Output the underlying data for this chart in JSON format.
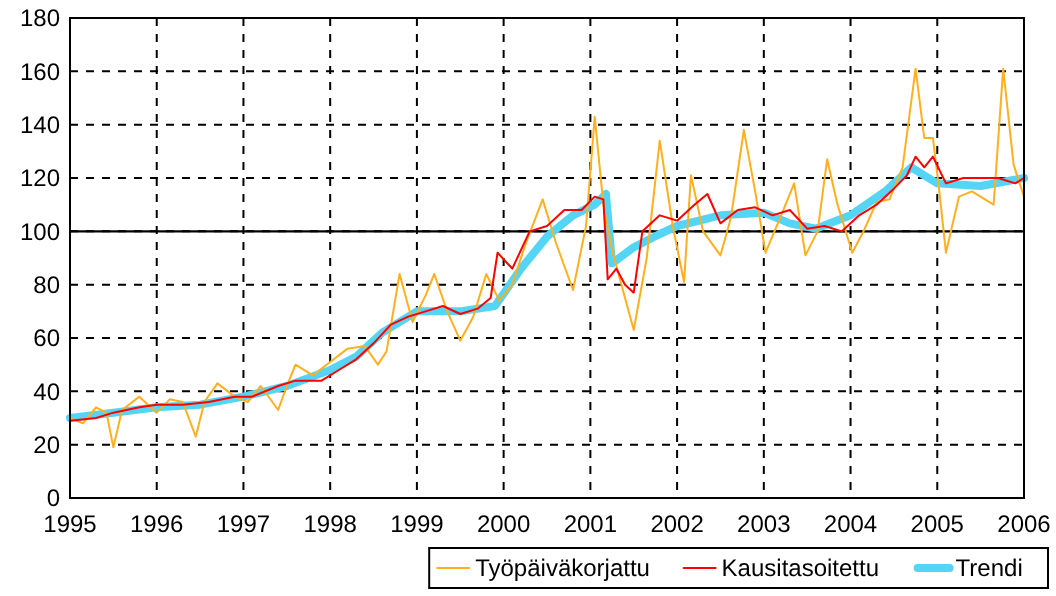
{
  "chart_data": {
    "type": "line",
    "xlim": [
      1995,
      2006
    ],
    "ylim": [
      0,
      180
    ],
    "xticks": [
      1995,
      1996,
      1997,
      1998,
      1999,
      2000,
      2001,
      2002,
      2003,
      2004,
      2005,
      2006
    ],
    "yticks": [
      0,
      20,
      40,
      60,
      80,
      100,
      120,
      140,
      160,
      180
    ],
    "grid": true,
    "legend": "bottom",
    "line_style": "solid",
    "ref_lines": [
      {
        "axis": "y",
        "value": 100,
        "label": null,
        "color": "#000000"
      }
    ],
    "series": [
      {
        "name": "Työpäiväkorjattu",
        "color": "#ffb020",
        "x": [
          1995,
          1995.15,
          1995.3,
          1995.42,
          1995.5,
          1995.6,
          1995.8,
          1996,
          1996.15,
          1996.3,
          1996.45,
          1996.55,
          1996.7,
          1996.9,
          1997.05,
          1997.2,
          1997.4,
          1997.5,
          1997.6,
          1997.8,
          1998,
          1998.2,
          1998.4,
          1998.55,
          1998.65,
          1998.8,
          1998.95,
          1999.1,
          1999.2,
          1999.35,
          1999.5,
          1999.65,
          1999.8,
          1999.95,
          2000.1,
          2000.25,
          2000.45,
          2000.6,
          2000.8,
          2000.95,
          2001.05,
          2001.15,
          2001.25,
          2001.4,
          2001.5,
          2001.65,
          2001.8,
          2001.95,
          2002.08,
          2002.16,
          2002.3,
          2002.5,
          2002.62,
          2002.77,
          2002.9,
          2003.02,
          2003.2,
          2003.35,
          2003.48,
          2003.62,
          2003.73,
          2003.85,
          2004.02,
          2004.15,
          2004.3,
          2004.45,
          2004.6,
          2004.75,
          2004.85,
          2004.95,
          2005.02,
          2005.1,
          2005.25,
          2005.4,
          2005.55,
          2005.65,
          2005.76,
          2005.88,
          2006
        ],
        "values": [
          30,
          28,
          34,
          32,
          19,
          33,
          38,
          32,
          37,
          36,
          23,
          36,
          43,
          38,
          36,
          42,
          33,
          42,
          50,
          46,
          51,
          56,
          57,
          50,
          55,
          84,
          66,
          76,
          84,
          70,
          59,
          68,
          84,
          74,
          80,
          95,
          112,
          96,
          78,
          102,
          143,
          110,
          93,
          75,
          63,
          90,
          134,
          102,
          81,
          121,
          100,
          91,
          105,
          138,
          115,
          92,
          106,
          118,
          91,
          100,
          127,
          110,
          92,
          100,
          111,
          112,
          124,
          161,
          135,
          135,
          116,
          92,
          113,
          115,
          112,
          110,
          161,
          125,
          113
        ]
      },
      {
        "name": "Kausitasoitettu",
        "color": "#ff0000",
        "x": [
          1995,
          1995.3,
          1995.5,
          1995.8,
          1996,
          1996.3,
          1996.6,
          1996.9,
          1997.1,
          1997.4,
          1997.6,
          1997.9,
          1998.1,
          1998.3,
          1998.5,
          1998.7,
          1998.9,
          1999.1,
          1999.3,
          1999.5,
          1999.7,
          1999.85,
          1999.93,
          2000.1,
          2000.3,
          2000.5,
          2000.7,
          2000.9,
          2001.05,
          2001.15,
          2001.2,
          2001.3,
          2001.4,
          2001.5,
          2001.6,
          2001.8,
          2002,
          2002.2,
          2002.35,
          2002.5,
          2002.7,
          2002.9,
          2003.1,
          2003.3,
          2003.5,
          2003.7,
          2003.9,
          2004.1,
          2004.3,
          2004.5,
          2004.65,
          2004.75,
          2004.85,
          2004.95,
          2005.1,
          2005.3,
          2005.5,
          2005.7,
          2005.9,
          2006
        ],
        "values": [
          29,
          30,
          32,
          34,
          35,
          35,
          36,
          38,
          38,
          42,
          44,
          44,
          48,
          52,
          58,
          65,
          68,
          70,
          72,
          69,
          71,
          75,
          92,
          86,
          100,
          102,
          108,
          108,
          113,
          112,
          82,
          86,
          80,
          77,
          100,
          106,
          104,
          110,
          114,
          103,
          108,
          109,
          106,
          108,
          101,
          102,
          100,
          106,
          110,
          116,
          121,
          128,
          124,
          128,
          118,
          120,
          120,
          120,
          118,
          120
        ]
      },
      {
        "name": "Trendi",
        "color": "#55d5f5",
        "x": [
          1995,
          1995.5,
          1996,
          1996.5,
          1997,
          1997.5,
          1998,
          1998.3,
          1998.6,
          1999,
          1999.5,
          1999.9,
          2000.2,
          2000.5,
          2000.8,
          2001.05,
          2001.18,
          2001.25,
          2001.5,
          2001.8,
          2002,
          2002.5,
          2003,
          2003.3,
          2003.6,
          2004,
          2004.4,
          2004.7,
          2005,
          2005.5,
          2006
        ],
        "values": [
          30,
          32,
          34,
          35,
          38,
          42,
          48,
          53,
          62,
          70,
          70,
          72,
          86,
          98,
          106,
          110,
          114,
          88,
          94,
          99,
          102,
          106,
          107,
          103,
          101,
          106,
          115,
          124,
          118,
          117,
          120
        ]
      }
    ]
  }
}
